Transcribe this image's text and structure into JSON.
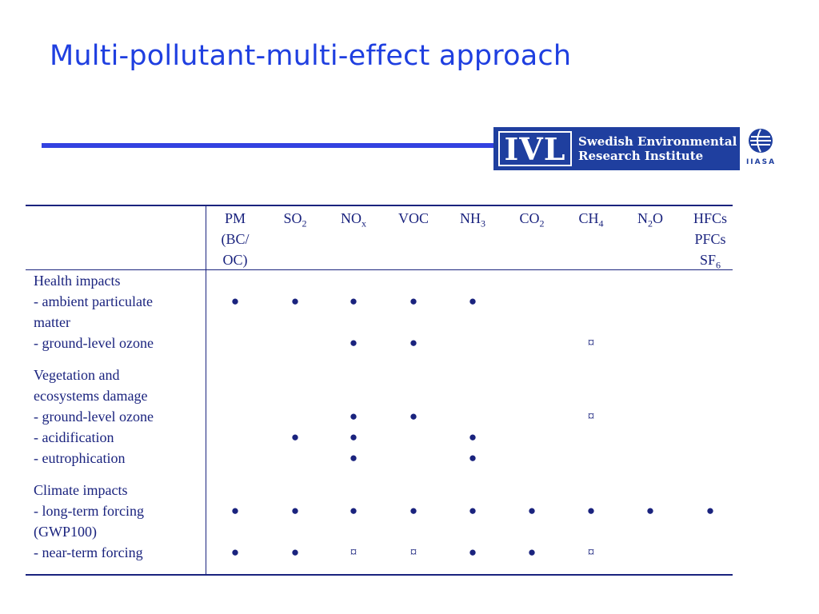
{
  "slide": {
    "title": "Multi-pollutant-multi-effect approach"
  },
  "logos": {
    "ivl": {
      "mark": "IVL",
      "line1": "Swedish Environmental",
      "line2": "Research Institute"
    },
    "iiasa": {
      "label": "IIASA"
    }
  },
  "table": {
    "columns": [
      {
        "id": "pm",
        "lines": [
          "PM",
          "(BC/",
          "OC)"
        ]
      },
      {
        "id": "so2",
        "base": "SO",
        "sub": "2"
      },
      {
        "id": "nox",
        "base": "NO",
        "sub": "x"
      },
      {
        "id": "voc",
        "base": "VOC",
        "sub": ""
      },
      {
        "id": "nh3",
        "base": "NH",
        "sub": "3"
      },
      {
        "id": "co2",
        "base": "CO",
        "sub": "2"
      },
      {
        "id": "ch4",
        "base": "CH",
        "sub": "4"
      },
      {
        "id": "n2o",
        "base": "N",
        "sub": "2",
        "tail": "O"
      },
      {
        "id": "hfc",
        "lines": [
          "HFCs",
          "PFCs",
          "SF"
        ],
        "sub_last": "6"
      }
    ],
    "symbols": {
      "strong": "●",
      "partial": "¤"
    },
    "rows": [
      {
        "label": "Health impacts",
        "marks": null
      },
      {
        "label": "- ambient particulate",
        "marks": [
          "●",
          "●",
          "●",
          "●",
          "●",
          "",
          "",
          "",
          ""
        ]
      },
      {
        "label": "matter",
        "marks": null
      },
      {
        "label": "- ground-level ozone",
        "marks": [
          "",
          "",
          "●",
          "●",
          "",
          "",
          "¤",
          "",
          ""
        ]
      },
      {
        "label": "Vegetation and",
        "marks": null
      },
      {
        "label": "ecosystems damage",
        "marks": null
      },
      {
        "label": "- ground-level ozone",
        "marks": [
          "",
          "",
          "●",
          "●",
          "",
          "",
          "¤",
          "",
          ""
        ]
      },
      {
        "label": "- acidification",
        "marks": [
          "",
          "●",
          "●",
          "",
          "●",
          "",
          "",
          "",
          ""
        ]
      },
      {
        "label": "- eutrophication",
        "marks": [
          "",
          "",
          "●",
          "",
          "●",
          "",
          "",
          "",
          ""
        ]
      },
      {
        "label": "Climate impacts",
        "marks": null
      },
      {
        "label": "- long-term forcing",
        "marks": [
          "●",
          "●",
          "●",
          "●",
          "●",
          "●",
          "●",
          "●",
          "●"
        ]
      },
      {
        "label": "(GWP100)",
        "marks": null
      },
      {
        "label": "- near-term forcing",
        "marks": [
          "●",
          "●",
          "¤",
          "¤",
          "●",
          "●",
          "¤",
          "",
          ""
        ]
      }
    ]
  }
}
